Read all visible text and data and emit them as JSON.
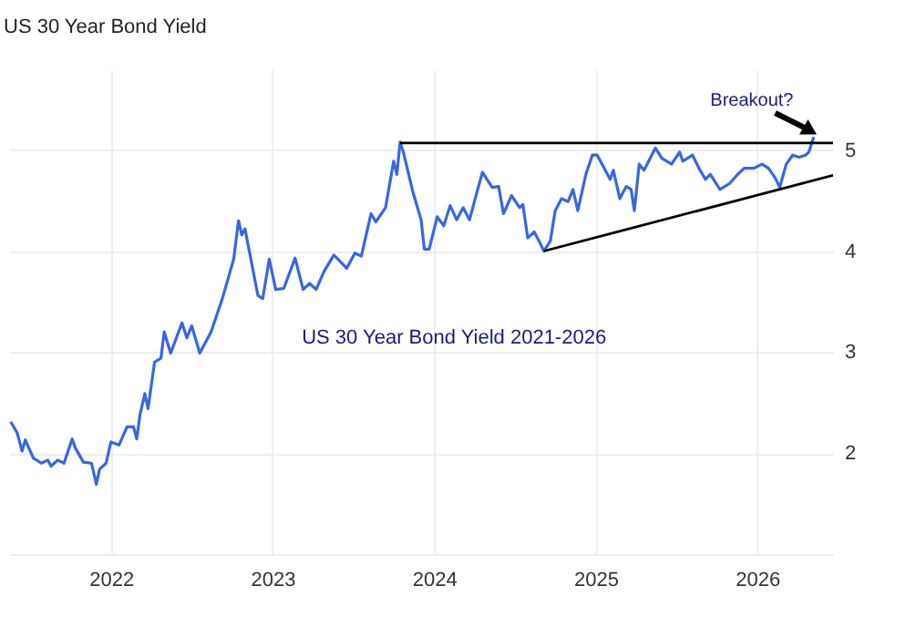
{
  "chart_data": {
    "type": "line",
    "title": "US 30 Year Bond Yield",
    "xlim": [
      2021.37,
      2026.47
    ],
    "xticks": [
      2022,
      2023,
      2024,
      2025,
      2026
    ],
    "ylim": [
      1,
      5.8
    ],
    "yticks": [
      2,
      3,
      4,
      5
    ],
    "grid": true,
    "marker": "none",
    "line_style": "solid",
    "series": [
      {
        "color": "#3a66e0",
        "x": [
          2021.38,
          2021.42,
          2021.45,
          2021.47,
          2021.52,
          2021.57,
          2021.61,
          2021.63,
          2021.67,
          2021.71,
          2021.76,
          2021.78,
          2021.83,
          2021.88,
          2021.91,
          2021.93,
          2021.97,
          2022.0,
          2022.05,
          2022.1,
          2022.14,
          2022.16,
          2022.18,
          2022.21,
          2022.23,
          2022.27,
          2022.31,
          2022.33,
          2022.37,
          2022.44,
          2022.47,
          2022.5,
          2022.55,
          2022.62,
          2022.69,
          2022.76,
          2022.79,
          2022.81,
          2022.83,
          2022.91,
          2022.94,
          2022.98,
          2023.02,
          2023.07,
          2023.14,
          2023.19,
          2023.23,
          2023.27,
          2023.32,
          2023.38,
          2023.46,
          2023.51,
          2023.55,
          2023.61,
          2023.64,
          2023.7,
          2023.75,
          2023.77,
          2023.79,
          2023.81,
          2023.87,
          2023.92,
          2023.94,
          2023.97,
          2024.02,
          2024.06,
          2024.1,
          2024.14,
          2024.18,
          2024.22,
          2024.27,
          2024.3,
          2024.36,
          2024.4,
          2024.43,
          2024.48,
          2024.53,
          2024.55,
          2024.58,
          2024.62,
          2024.65,
          2024.68,
          2024.72,
          2024.75,
          2024.79,
          2024.83,
          2024.86,
          2024.89,
          2024.94,
          2024.98,
          2025.01,
          2025.06,
          2025.09,
          2025.11,
          2025.15,
          2025.19,
          2025.22,
          2025.24,
          2025.27,
          2025.3,
          2025.37,
          2025.41,
          2025.47,
          2025.52,
          2025.54,
          2025.6,
          2025.64,
          2025.68,
          2025.71,
          2025.77,
          2025.83,
          2025.88,
          2025.92,
          2025.98,
          2026.03,
          2026.07,
          2026.11,
          2026.14,
          2026.18,
          2026.22,
          2026.26,
          2026.3,
          2026.32,
          2026.35
        ],
        "values": [
          2.31,
          2.2,
          2.02,
          2.13,
          1.95,
          1.9,
          1.93,
          1.87,
          1.93,
          1.9,
          2.14,
          2.05,
          1.91,
          1.9,
          1.69,
          1.84,
          1.9,
          2.11,
          2.08,
          2.26,
          2.26,
          2.14,
          2.38,
          2.59,
          2.44,
          2.9,
          2.94,
          3.2,
          2.99,
          3.29,
          3.14,
          3.26,
          2.99,
          3.2,
          3.53,
          3.92,
          4.3,
          4.16,
          4.22,
          3.56,
          3.53,
          3.92,
          3.62,
          3.63,
          3.93,
          3.62,
          3.68,
          3.62,
          3.8,
          3.96,
          3.83,
          3.98,
          3.95,
          4.37,
          4.29,
          4.43,
          4.89,
          4.76,
          5.08,
          4.98,
          4.58,
          4.31,
          4.02,
          4.02,
          4.34,
          4.25,
          4.45,
          4.31,
          4.43,
          4.31,
          4.61,
          4.78,
          4.63,
          4.64,
          4.37,
          4.55,
          4.43,
          4.46,
          4.13,
          4.19,
          4.1,
          4.0,
          4.1,
          4.4,
          4.52,
          4.49,
          4.61,
          4.4,
          4.76,
          4.95,
          4.95,
          4.8,
          4.71,
          4.8,
          4.52,
          4.64,
          4.61,
          4.4,
          4.86,
          4.8,
          5.02,
          4.92,
          4.86,
          4.98,
          4.89,
          4.95,
          4.82,
          4.71,
          4.76,
          4.61,
          4.67,
          4.76,
          4.82,
          4.82,
          4.86,
          4.82,
          4.73,
          4.63,
          4.86,
          4.95,
          4.93,
          4.95,
          4.98,
          5.13
        ]
      },
      {
        "color": "#000000",
        "x": [
          2023.79,
          2026.47
        ],
        "values": [
          5.07,
          5.07
        ]
      },
      {
        "color": "#000000",
        "x": [
          2024.68,
          2026.47
        ],
        "values": [
          4.0,
          4.75
        ]
      }
    ],
    "annotations": [
      "US 30 Year Bond Yield 2021-2026",
      {
        "text": "Breakout?",
        "x": 2026.36,
        "y": 5.15
      }
    ]
  }
}
